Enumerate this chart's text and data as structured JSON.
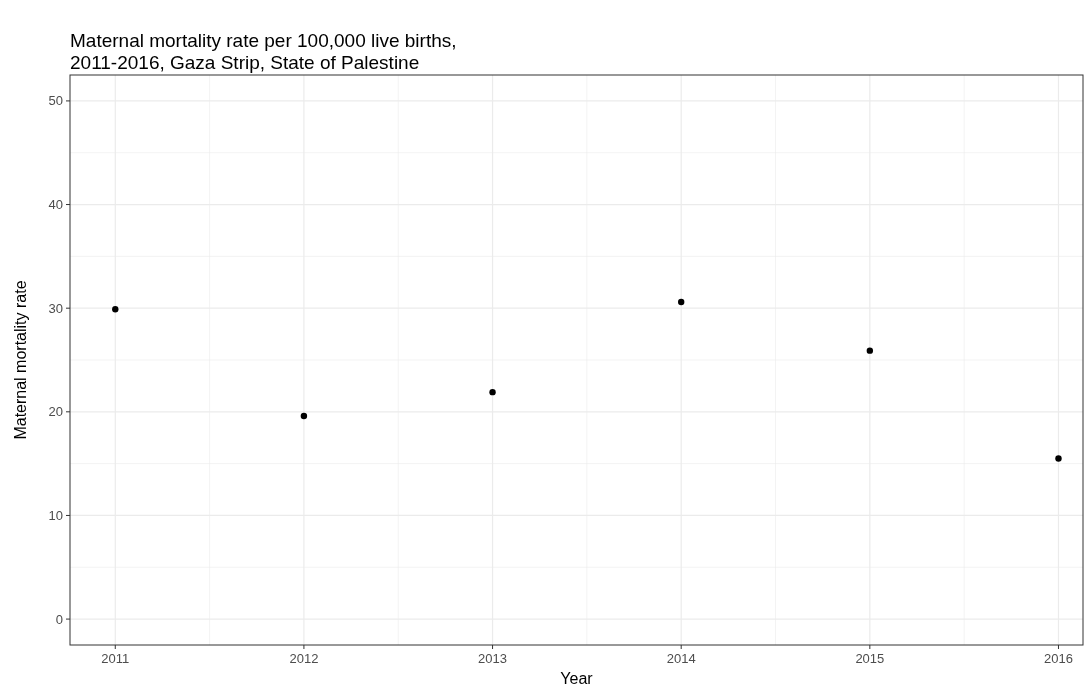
{
  "chart_data": {
    "type": "scatter",
    "title": "Maternal mortality rate per 100,000 live births,\n2011-2016, Gaza Strip, State of Palestine",
    "xlabel": "Year",
    "ylabel": "Maternal mortality rate",
    "x": [
      2011,
      2012,
      2013,
      2014,
      2015,
      2016
    ],
    "series": [
      {
        "color": "#000000",
        "values": [
          29.9,
          19.6,
          21.9,
          30.6,
          25.9,
          15.5
        ]
      }
    ],
    "xlim": [
      2010.76,
      2016.13
    ],
    "xticks": [
      2011,
      2012,
      2013,
      2014,
      2015,
      2016
    ],
    "ylim": [
      -2.5,
      52.5
    ],
    "yticks": [
      0,
      10,
      20,
      30,
      40,
      50
    ],
    "grid": true,
    "marker": "circle"
  }
}
